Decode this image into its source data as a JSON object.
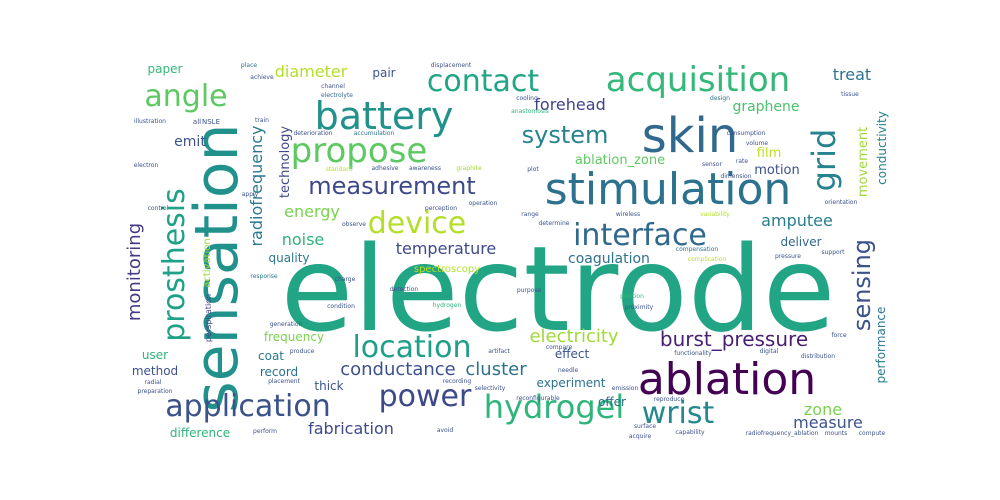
{
  "words": [
    {
      "text": "electrode",
      "color": "#21a585"
    },
    {
      "text": "sensation",
      "color": "#21918c"
    },
    {
      "text": "skin",
      "color": "#31688e"
    },
    {
      "text": "stimulation",
      "color": "#2c728e"
    },
    {
      "text": "ablation",
      "color": "#440154"
    },
    {
      "text": "acquisition",
      "color": "#35b779"
    },
    {
      "text": "battery",
      "color": "#21918c"
    },
    {
      "text": "prosthesis",
      "color": "#1fa187"
    },
    {
      "text": "propose",
      "color": "#5ec962"
    },
    {
      "text": "contact",
      "color": "#21a585"
    },
    {
      "text": "application",
      "color": "#3b528b"
    },
    {
      "text": "hydrogel",
      "color": "#2fb47c"
    },
    {
      "text": "interface",
      "color": "#31688e"
    },
    {
      "text": "location",
      "color": "#1f9e89"
    },
    {
      "text": "measurement",
      "color": "#3e4989"
    },
    {
      "text": "device",
      "color": "#b5de2b"
    },
    {
      "text": "power",
      "color": "#3e4989"
    },
    {
      "text": "wrist",
      "color": "#23898e"
    },
    {
      "text": "angle",
      "color": "#5ec962"
    },
    {
      "text": "grid",
      "color": "#26828e"
    },
    {
      "text": "sensing",
      "color": "#3b528b"
    },
    {
      "text": "system",
      "color": "#25848e"
    },
    {
      "text": "monitoring",
      "color": "#443983"
    },
    {
      "text": "burst_pressure",
      "color": "#481f70"
    },
    {
      "text": "radiofrequency",
      "color": "#2a788e"
    },
    {
      "text": "conductance",
      "color": "#3b528b"
    },
    {
      "text": "cluster",
      "color": "#2c728e"
    },
    {
      "text": "electricity",
      "color": "#a0da39"
    },
    {
      "text": "temperature",
      "color": "#3e4989"
    },
    {
      "text": "forehead",
      "color": "#404387"
    },
    {
      "text": "fabrication",
      "color": "#3e4989"
    },
    {
      "text": "measure",
      "color": "#3b528b"
    },
    {
      "text": "coagulation",
      "color": "#2c728e"
    },
    {
      "text": "amputee",
      "color": "#287d8e"
    },
    {
      "text": "energy",
      "color": "#7ad151"
    },
    {
      "text": "noise",
      "color": "#2fb47c"
    },
    {
      "text": "diameter",
      "color": "#b5de2b"
    },
    {
      "text": "treat",
      "color": "#2c728e"
    },
    {
      "text": "zone",
      "color": "#7ad151"
    },
    {
      "text": "graphene",
      "color": "#4ac16d"
    },
    {
      "text": "movement",
      "color": "#a0da39"
    },
    {
      "text": "conductivity",
      "color": "#25848e"
    },
    {
      "text": "performance",
      "color": "#2a788e"
    },
    {
      "text": "technology",
      "color": "#3e4989"
    },
    {
      "text": "ablation_zone",
      "color": "#5ec962"
    },
    {
      "text": "film",
      "color": "#bddf26"
    },
    {
      "text": "motion",
      "color": "#3b528b"
    },
    {
      "text": "emit",
      "color": "#3b528b"
    },
    {
      "text": "deliver",
      "color": "#31688e"
    },
    {
      "text": "quality",
      "color": "#2a788e"
    },
    {
      "text": "frequency",
      "color": "#7ad151"
    },
    {
      "text": "effect",
      "color": "#3b528b"
    },
    {
      "text": "record",
      "color": "#2c728e"
    },
    {
      "text": "coat",
      "color": "#2a788e"
    },
    {
      "text": "thick",
      "color": "#3b528b"
    },
    {
      "text": "experiment",
      "color": "#2c728e"
    },
    {
      "text": "offer",
      "color": "#31688e"
    },
    {
      "text": "user",
      "color": "#2fb47c"
    },
    {
      "text": "method",
      "color": "#3b528b"
    },
    {
      "text": "difference",
      "color": "#2fb47c"
    },
    {
      "text": "spectroscopy",
      "color": "#b5de2b"
    },
    {
      "text": "activation",
      "color": "#a0da39"
    },
    {
      "text": "perspiration",
      "color": "#414487"
    },
    {
      "text": "paper",
      "color": "#35b779"
    },
    {
      "text": "pair",
      "color": "#3b528b"
    },
    {
      "text": "place",
      "color": "#2c728e"
    },
    {
      "text": "displacement",
      "color": "#3b528b"
    },
    {
      "text": "tissue",
      "color": "#3b528b"
    },
    {
      "text": "design",
      "color": "#2c728e"
    },
    {
      "text": "channel",
      "color": "#3b528b"
    },
    {
      "text": "electrolyte",
      "color": "#31688e"
    },
    {
      "text": "anastomosis",
      "color": "#2fb47c"
    },
    {
      "text": "consumption",
      "color": "#3b528b"
    },
    {
      "text": "deterioration",
      "color": "#3b528b"
    },
    {
      "text": "accumulation",
      "color": "#2c728e"
    },
    {
      "text": "charge",
      "color": "#3b528b"
    },
    {
      "text": "range",
      "color": "#3b528b"
    },
    {
      "text": "response",
      "color": "#2a788e"
    },
    {
      "text": "wireless",
      "color": "#3b528b"
    },
    {
      "text": "variability",
      "color": "#b5de2b"
    },
    {
      "text": "pressure",
      "color": "#3b528b"
    },
    {
      "text": "support",
      "color": "#3b528b"
    },
    {
      "text": "orientation",
      "color": "#3b528b"
    },
    {
      "text": "compensation",
      "color": "#2c728e"
    },
    {
      "text": "complication",
      "color": "#b5de2b"
    },
    {
      "text": "purpose",
      "color": "#3b528b"
    },
    {
      "text": "position",
      "color": "#35b779"
    },
    {
      "text": "proximity",
      "color": "#3b528b"
    },
    {
      "text": "condition",
      "color": "#3b528b"
    },
    {
      "text": "hydrogen",
      "color": "#2fb47c"
    },
    {
      "text": "graphite",
      "color": "#a0da39"
    },
    {
      "text": "standard",
      "color": "#b5de2b"
    },
    {
      "text": "train",
      "color": "#3b528b"
    },
    {
      "text": "achieve",
      "color": "#3b528b"
    },
    {
      "text": "force",
      "color": "#3b528b"
    },
    {
      "text": "distribution",
      "color": "#3b528b"
    },
    {
      "text": "digital",
      "color": "#3b528b"
    },
    {
      "text": "compute",
      "color": "#3b528b"
    },
    {
      "text": "capability",
      "color": "#3b528b"
    },
    {
      "text": "acquire",
      "color": "#3b528b"
    },
    {
      "text": "surface",
      "color": "#3b528b"
    },
    {
      "text": "reproduce",
      "color": "#3b528b"
    },
    {
      "text": "functionality",
      "color": "#3b528b"
    },
    {
      "text": "reconfigurable",
      "color": "#3b528b"
    },
    {
      "text": "selectivity",
      "color": "#3b528b"
    },
    {
      "text": "recording",
      "color": "#3b528b"
    },
    {
      "text": "artifact",
      "color": "#3b528b"
    },
    {
      "text": "placement",
      "color": "#3b528b"
    },
    {
      "text": "radial",
      "color": "#3b528b"
    },
    {
      "text": "preparation",
      "color": "#3b528b"
    },
    {
      "text": "generation",
      "color": "#3b528b"
    },
    {
      "text": "electron",
      "color": "#3b528b"
    },
    {
      "text": "avoid",
      "color": "#3b528b"
    },
    {
      "text": "perform",
      "color": "#3b528b"
    },
    {
      "text": "radiofrequency_ablation",
      "color": "#3b528b"
    },
    {
      "text": "mounts",
      "color": "#3b528b"
    },
    {
      "text": "needle",
      "color": "#3b528b"
    },
    {
      "text": "emission",
      "color": "#3b528b"
    },
    {
      "text": "produce",
      "color": "#3b528b"
    },
    {
      "text": "compare",
      "color": "#3b528b"
    },
    {
      "text": "detection",
      "color": "#3b528b"
    },
    {
      "text": "perception",
      "color": "#3b528b"
    },
    {
      "text": "observe",
      "color": "#3b528b"
    },
    {
      "text": "operation",
      "color": "#3b528b"
    },
    {
      "text": "control",
      "color": "#3b528b"
    },
    {
      "text": "apply",
      "color": "#3b528b"
    },
    {
      "text": "determine",
      "color": "#3b528b"
    },
    {
      "text": "adhesive",
      "color": "#3b528b"
    },
    {
      "text": "awareness",
      "color": "#3b528b"
    },
    {
      "text": "plot",
      "color": "#3b528b"
    },
    {
      "text": "cooling",
      "color": "#3b528b"
    },
    {
      "text": "rate",
      "color": "#3b528b"
    },
    {
      "text": "sensor",
      "color": "#3b528b"
    },
    {
      "text": "dimension",
      "color": "#3b528b"
    },
    {
      "text": "volume",
      "color": "#3b528b"
    },
    {
      "text": "all",
      "color": "#3b528b"
    },
    {
      "text": "NSLE",
      "color": "#3b528b"
    },
    {
      "text": "illustration",
      "color": "#3b528b"
    }
  ]
}
